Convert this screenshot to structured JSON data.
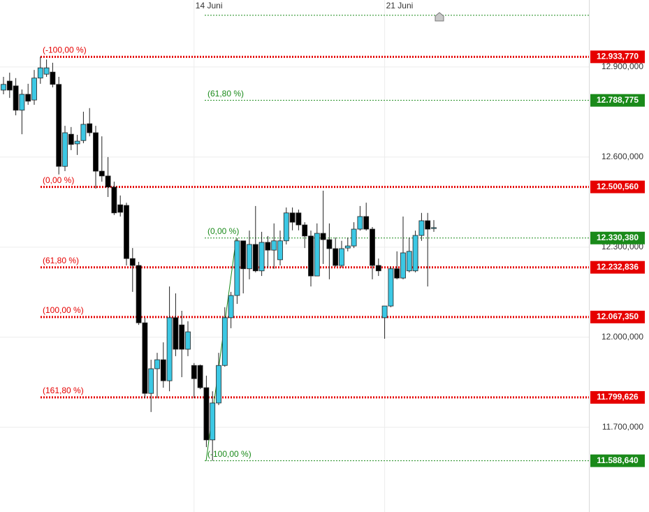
{
  "chart_data": {
    "type": "candlestick",
    "up_color": "#3cc8e4",
    "down_color": "#000000",
    "ylim": [
      11418,
      13123
    ],
    "yticks": [
      {
        "value": 12900,
        "label": "12.900,000"
      },
      {
        "value": 12600,
        "label": "12.600,000"
      },
      {
        "value": 12300,
        "label": "12.300,000"
      },
      {
        "value": 12000,
        "label": "12.000,000"
      },
      {
        "value": 11700,
        "label": "11.700,000"
      }
    ],
    "xticks": [
      {
        "value": 31,
        "label": "14 Juni"
      },
      {
        "value": 62,
        "label": "21 Juni"
      }
    ],
    "grid": true,
    "open": [
      12823,
      12853,
      12837,
      12756,
      12809,
      12790,
      12863,
      12876,
      12883,
      12842,
      12569,
      12676,
      12644,
      12655,
      12711,
      12681,
      12553,
      12537,
      12500,
      12441,
      12439,
      12262,
      12239,
      12048,
      11813,
      11895,
      11925,
      11855,
      12065,
      12041,
      11960,
      11906,
      11906,
      11832,
      11658,
      11781,
      11906,
      12065,
      12139,
      12321,
      12228,
      12309,
      12221,
      12316,
      12290,
      12258,
      12321,
      12414,
      12414,
      12374,
      12337,
      12204,
      12346,
      12325,
      12295,
      12239,
      12297,
      12304,
      12360,
      12402,
      12360,
      12239,
      12065,
      12104,
      12228,
      12197,
      12221,
      12221,
      12339,
      12388,
      12362
    ],
    "high": [
      12867,
      12881,
      12863,
      12825,
      12844,
      12890,
      12934,
      12925,
      12914,
      12867,
      12704,
      12700,
      12674,
      12751,
      12763,
      12704,
      12669,
      12600,
      12518,
      12472,
      12448,
      12297,
      12251,
      12065,
      11925,
      11948,
      11983,
      12169,
      12146,
      12088,
      12053,
      11914,
      11909,
      11872,
      11820,
      11948,
      12100,
      12151,
      12330,
      12321,
      12355,
      12437,
      12351,
      12337,
      12379,
      12355,
      12432,
      12432,
      12425,
      12383,
      12355,
      12379,
      12488,
      12379,
      12332,
      12321,
      12332,
      12383,
      12437,
      12448,
      12367,
      12262,
      12104,
      12235,
      12286,
      12402,
      12332,
      12355,
      12414,
      12414,
      12390
    ],
    "low": [
      12809,
      12797,
      12739,
      12676,
      12774,
      12774,
      12844,
      12867,
      12832,
      12542,
      12553,
      12623,
      12607,
      12646,
      12669,
      12495,
      12518,
      12467,
      12407,
      12402,
      12239,
      12151,
      12041,
      11797,
      11751,
      11797,
      11832,
      11820,
      11937,
      11867,
      11937,
      11797,
      11827,
      11634,
      11589,
      11774,
      11902,
      12030,
      12111,
      12146,
      12193,
      12216,
      12204,
      12232,
      12228,
      12239,
      12309,
      12356,
      12356,
      12297,
      12169,
      12204,
      12244,
      12193,
      12235,
      12232,
      12286,
      12297,
      12355,
      12355,
      12193,
      12204,
      11995,
      12100,
      12193,
      12193,
      12216,
      12216,
      12321,
      12169,
      12351
    ],
    "close": [
      12842,
      12823,
      12756,
      12809,
      12786,
      12863,
      12897,
      12897,
      12842,
      12569,
      12681,
      12642,
      12653,
      12709,
      12681,
      12553,
      12537,
      12500,
      12414,
      12416,
      12262,
      12239,
      12048,
      11813,
      11895,
      11925,
      11855,
      12065,
      11960,
      11960,
      12018,
      11862,
      11832,
      11658,
      11781,
      11906,
      12065,
      12139,
      12321,
      12228,
      12309,
      12221,
      12316,
      12290,
      12321,
      12321,
      12414,
      12383,
      12374,
      12337,
      12204,
      12346,
      12325,
      12295,
      12239,
      12295,
      12304,
      12360,
      12402,
      12360,
      12239,
      12221,
      12104,
      12228,
      12197,
      12281,
      12286,
      12339,
      12388,
      12360,
      12365
    ],
    "fibonacci": [
      {
        "color": "#e60000",
        "levels": [
          {
            "label": "(-100,00 %)",
            "value": 12933.77,
            "value_label": "12.933,770"
          },
          {
            "label": "(0,00 %)",
            "value": 12500.56,
            "value_label": "12.500,560"
          },
          {
            "label": "(61,80 %)",
            "value": 12232.836,
            "value_label": "12.232,836"
          },
          {
            "label": "(100,00 %)",
            "value": 12067.35,
            "value_label": "12.067,350"
          },
          {
            "label": "(161,80 %)",
            "value": 11799.626,
            "value_label": "11.799,626"
          }
        ]
      },
      {
        "color": "#1a8a1a",
        "levels": [
          {
            "value": 13072.12
          },
          {
            "label": "(61,80 %)",
            "value": 12788.775,
            "value_label": "12.788,775"
          },
          {
            "label": "(0,00 %)",
            "value": 12330.38,
            "value_label": "12.330,380"
          },
          {
            "label": "(-100,00 %)",
            "value": 11588.64,
            "value_label": "11.588,640"
          }
        ]
      }
    ]
  }
}
